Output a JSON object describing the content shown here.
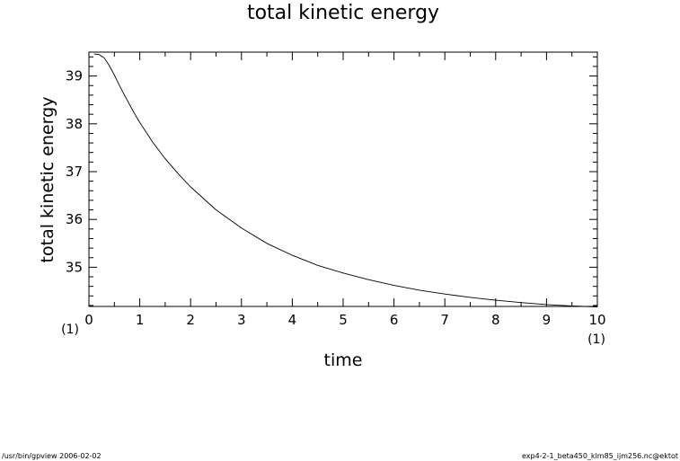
{
  "chart_data": {
    "type": "line",
    "title": "total kinetic energy",
    "xlabel": "time",
    "ylabel": "total kinetic energy",
    "x_unit": "(1)",
    "y_unit": "(1)",
    "xlim": [
      0,
      10
    ],
    "ylim": [
      34.18,
      39.5
    ],
    "xticks": [
      0,
      1,
      2,
      3,
      4,
      5,
      6,
      7,
      8,
      9,
      10
    ],
    "yticks": [
      35,
      36,
      37,
      38,
      39
    ],
    "grid": false,
    "series": [
      {
        "x": [
          0.1,
          0.2,
          0.3,
          0.4,
          0.5,
          0.6,
          0.7,
          0.8,
          0.9,
          1.0,
          1.25,
          1.5,
          1.75,
          2.0,
          2.5,
          3.0,
          3.5,
          4.0,
          4.5,
          5.0,
          5.5,
          6.0,
          6.5,
          7.0,
          7.5,
          8.0,
          8.5,
          9.0,
          9.5,
          10.0
        ],
        "y": [
          39.46,
          39.45,
          39.38,
          39.22,
          39.02,
          38.8,
          38.6,
          38.4,
          38.21,
          38.03,
          37.62,
          37.27,
          36.96,
          36.68,
          36.2,
          35.82,
          35.5,
          35.25,
          35.04,
          34.88,
          34.74,
          34.62,
          34.52,
          34.44,
          34.37,
          34.31,
          34.26,
          34.22,
          34.19,
          34.17
        ]
      }
    ]
  },
  "footer": {
    "left": "/usr/bin/gpview   2006-02-02",
    "right": "exp4-2-1_beta450_klm85_ijm256.nc@ektot"
  }
}
